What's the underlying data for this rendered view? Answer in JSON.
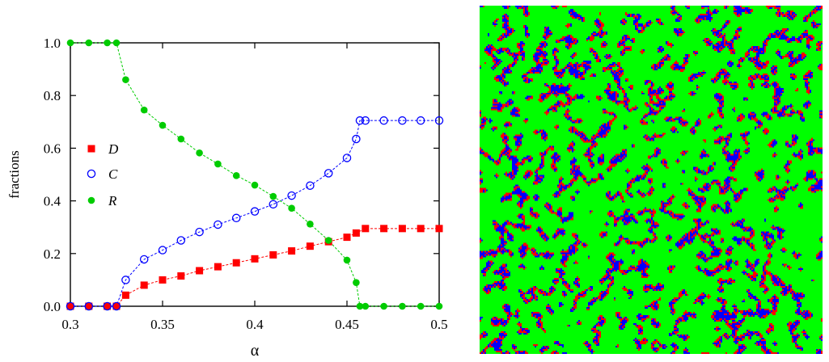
{
  "chart_data": {
    "type": "scatter",
    "xlabel": "α",
    "ylabel": "fractions",
    "xlim": [
      0.3,
      0.5
    ],
    "ylim": [
      0.0,
      1.0
    ],
    "xticks": [
      "0.3",
      "0.35",
      "0.4",
      "0.45",
      "0.5"
    ],
    "yticks": [
      "0.0",
      "0.2",
      "0.4",
      "0.6",
      "0.8",
      "1.0"
    ],
    "grid": false,
    "legend_position": "left",
    "series": [
      {
        "name": "D",
        "color": "#ff0000",
        "marker": "filled-square",
        "x": [
          0.3,
          0.31,
          0.32,
          0.325,
          0.33,
          0.34,
          0.35,
          0.36,
          0.37,
          0.38,
          0.39,
          0.4,
          0.41,
          0.42,
          0.43,
          0.44,
          0.45,
          0.455,
          0.46,
          0.47,
          0.48,
          0.49,
          0.5
        ],
        "y": [
          0.0,
          0.0,
          0.0,
          0.0,
          0.042,
          0.08,
          0.1,
          0.115,
          0.135,
          0.15,
          0.165,
          0.18,
          0.195,
          0.21,
          0.228,
          0.245,
          0.262,
          0.278,
          0.295,
          0.295,
          0.295,
          0.295,
          0.295
        ]
      },
      {
        "name": "C",
        "color": "#0000ff",
        "marker": "open-circle",
        "x": [
          0.3,
          0.31,
          0.32,
          0.325,
          0.33,
          0.34,
          0.35,
          0.36,
          0.37,
          0.38,
          0.39,
          0.4,
          0.41,
          0.42,
          0.43,
          0.44,
          0.45,
          0.455,
          0.457,
          0.46,
          0.47,
          0.48,
          0.49,
          0.5
        ],
        "y": [
          0.0,
          0.0,
          0.0,
          0.0,
          0.1,
          0.178,
          0.213,
          0.25,
          0.282,
          0.31,
          0.335,
          0.36,
          0.387,
          0.42,
          0.458,
          0.505,
          0.563,
          0.635,
          0.705,
          0.705,
          0.705,
          0.705,
          0.705,
          0.705
        ]
      },
      {
        "name": "R",
        "color": "#00cc00",
        "marker": "filled-circle",
        "x": [
          0.3,
          0.31,
          0.32,
          0.325,
          0.33,
          0.34,
          0.35,
          0.36,
          0.37,
          0.38,
          0.39,
          0.4,
          0.41,
          0.42,
          0.43,
          0.44,
          0.45,
          0.455,
          0.457,
          0.46,
          0.47,
          0.48,
          0.49,
          0.5
        ],
        "y": [
          1.0,
          1.0,
          1.0,
          1.0,
          0.86,
          0.745,
          0.687,
          0.635,
          0.582,
          0.54,
          0.496,
          0.46,
          0.417,
          0.372,
          0.312,
          0.25,
          0.175,
          0.09,
          0.0,
          0.0,
          0.0,
          0.0,
          0.0,
          0.0
        ]
      }
    ]
  },
  "lattice_colors": {
    "defector": "#ff0000",
    "cooperator": "#0000ff",
    "rewarder": "#00ff00"
  }
}
